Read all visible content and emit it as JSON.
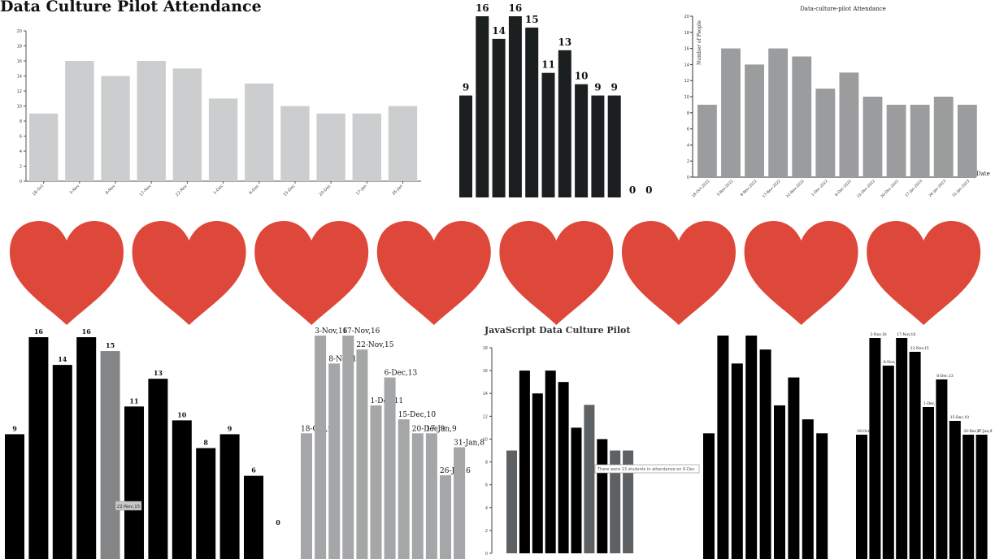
{
  "page_title": "Data Culture Pilot Attendance",
  "colors": {
    "light_gray": "#cccdce",
    "dark": "#1b1f1f",
    "mid_gray": "#9b9c9d",
    "black": "#000000",
    "highlight_gray": "#838587",
    "bar_gray": "#a5a6a7",
    "dark_gray": "#5e6163",
    "heart_red": "#de483a"
  },
  "hearts": [
    "heart",
    "heart",
    "heart",
    "heart",
    "heart",
    "heart",
    "heart",
    "heart"
  ],
  "chart_data": [
    {
      "id": "chart1",
      "type": "bar",
      "categories": [
        "18-Oct",
        "3-Nov",
        "8-Nov",
        "17-Nov",
        "22-Nov",
        "1-Dec",
        "6-Dec",
        "15-Dec",
        "20-Dec",
        "17-Jan",
        "26-Jan"
      ],
      "values": [
        9,
        16,
        14,
        16,
        15,
        11,
        13,
        10,
        9,
        9,
        10
      ],
      "ylim": [
        0,
        20
      ],
      "yticks": [
        0,
        2,
        4,
        6,
        8,
        10,
        12,
        14,
        16,
        18,
        20
      ]
    },
    {
      "id": "chart2",
      "type": "bar",
      "values": [
        9,
        16,
        14,
        16,
        15,
        11,
        13,
        10,
        9,
        9,
        0,
        0
      ],
      "data_labels": [
        "9",
        "16",
        "14",
        "16",
        "15",
        "11",
        "13",
        "10",
        "9",
        "9",
        "0",
        "0"
      ]
    },
    {
      "id": "chart3",
      "type": "bar",
      "title": "Data-culture-pilot Attendance",
      "xlabel": "Date",
      "ylabel": "Number of People",
      "categories": [
        "18-Oct-2022",
        "3-Nov-2022",
        "8-Nov-2022",
        "17-Nov-2022",
        "22-Nov-2022",
        "1-Dec-2022",
        "6-Dec-2022",
        "15-Dec-2022",
        "20-Dec-2022",
        "17-Jan-2023",
        "26-Jan-2023",
        "31-Jan-2023"
      ],
      "values": [
        9,
        16,
        14,
        16,
        15,
        11,
        13,
        10,
        9,
        9,
        10,
        9
      ],
      "ylim": [
        0,
        20
      ],
      "yticks": [
        0,
        2,
        4,
        6,
        8,
        10,
        12,
        14,
        16,
        18,
        20
      ]
    },
    {
      "id": "chart4",
      "type": "bar",
      "values": [
        9,
        16,
        14,
        16,
        15,
        11,
        13,
        10,
        8,
        9,
        6,
        0
      ],
      "data_labels": [
        "9",
        "16",
        "14",
        "16",
        "15",
        "11",
        "13",
        "10",
        "8",
        "9",
        "6",
        "0"
      ],
      "highlight_index": 4,
      "tooltip": "22-Nov,15"
    },
    {
      "id": "chart5",
      "type": "bar",
      "values": [
        9,
        16,
        14,
        16,
        15,
        11,
        13,
        10,
        9,
        9,
        6,
        8
      ],
      "data_labels": [
        "18-Oct,9",
        "3-Nov,16",
        "8-Nov,14",
        "17-Nov,16",
        "22-Nov,15",
        "1-Dec,11",
        "6-Dec,13",
        "15-Dec,10",
        "20-Dec,9",
        "17-Jan,9",
        "26-Jan,6",
        "31-Jan,8"
      ]
    },
    {
      "id": "chart6",
      "type": "bar",
      "title": "JavaScript Data Culture Pilot",
      "values": [
        9,
        16,
        14,
        16,
        15,
        11,
        13,
        10,
        9,
        9
      ],
      "ylim": [
        0,
        18
      ],
      "yticks": [
        0,
        2,
        4,
        6,
        8,
        10,
        12,
        14,
        16,
        18
      ],
      "tooltip": "There were 13 students in attendance on 6-Dec"
    },
    {
      "id": "chart7",
      "type": "bar",
      "values": [
        9,
        16,
        14,
        16,
        15,
        11,
        13,
        10,
        9
      ]
    },
    {
      "id": "chart8",
      "type": "bar",
      "values": [
        9,
        16,
        14,
        16,
        15,
        11,
        13,
        10,
        9,
        9
      ],
      "data_labels": [
        "18-Oct,9",
        "3-Nov,16",
        "8-Nov,14",
        "17-Nov,16",
        "22-Nov,15",
        "1-Dec,11",
        "6-Dec,13",
        "15-Dec,10",
        "20-Dec,9",
        "17-Jan,9"
      ]
    }
  ]
}
